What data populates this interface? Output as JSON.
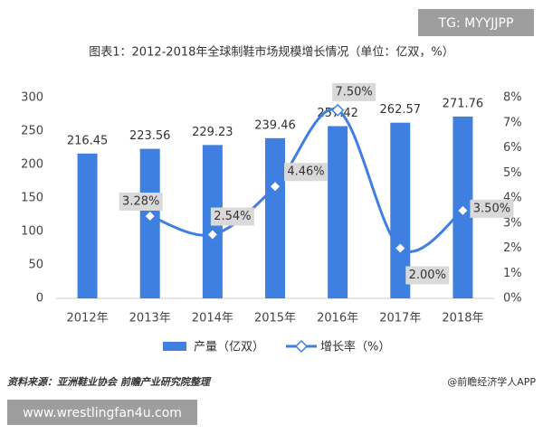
{
  "chart_data": {
    "type": "bar_line",
    "title": "图表1：2012-2018年全球制鞋市场规模增长情况（单位：亿双，%）",
    "categories": [
      "2012年",
      "2013年",
      "2014年",
      "2015年",
      "2016年",
      "2017年",
      "2018年"
    ],
    "series": [
      {
        "name": "产量（亿双）",
        "color": "#3f7fe0",
        "type": "bar",
        "values": [
          216.45,
          223.56,
          229.23,
          239.46,
          257.42,
          262.57,
          271.76
        ]
      },
      {
        "name": "增长率（%）",
        "color": "#3f7fe0",
        "type": "line",
        "axis": "y2",
        "values": [
          null,
          3.28,
          2.54,
          4.46,
          7.5,
          2.0,
          3.5
        ],
        "value_labels": [
          null,
          "3.28%",
          "2.54%",
          "4.46%",
          "7.50%",
          "2.00%",
          "3.50%"
        ]
      }
    ],
    "ylim": [
      0,
      300
    ],
    "yticks": [
      0,
      50,
      100,
      150,
      200,
      250,
      300
    ],
    "y2lim": [
      0,
      8
    ],
    "y2ticks": [
      {
        "value": 0,
        "label": "0%"
      },
      {
        "value": 1,
        "label": "1%"
      },
      {
        "value": 2,
        "label": "2%"
      },
      {
        "value": 3,
        "label": "3%"
      },
      {
        "value": 4,
        "label": "4%"
      },
      {
        "value": 5,
        "label": "5%"
      },
      {
        "value": 6,
        "label": "6%"
      },
      {
        "value": 7,
        "label": "7%"
      },
      {
        "value": 8,
        "label": "8%"
      }
    ],
    "grid": false,
    "legend": "bottom"
  },
  "footer": {
    "source": "资料来源：亚洲鞋业协会 前瞻产业研究院整理",
    "credit": "@前瞻经济学人APP"
  },
  "overlay": {
    "tag": "TG: MYYJJPP",
    "website": "www.wrestlingfan4u.com"
  }
}
